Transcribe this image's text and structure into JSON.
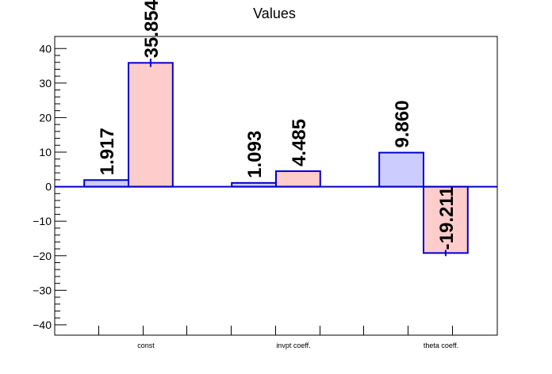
{
  "chart_data": {
    "type": "bar",
    "title": "Values",
    "categories": [
      "const",
      "invpt coeff.",
      "theta coeff."
    ],
    "series": [
      {
        "values": [
          1.917,
          1.093,
          9.86
        ],
        "labels": [
          "1.917",
          "1.093",
          "9.860"
        ],
        "errors": [
          0,
          0,
          0
        ],
        "fill": "#ccccff",
        "stroke": "#0000cc"
      },
      {
        "values": [
          35.854,
          4.485,
          -19.211
        ],
        "labels": [
          "35.854",
          "4.485",
          "-19.211"
        ],
        "errors": [
          1.2,
          0,
          0.9
        ],
        "fill": "#ffcccc",
        "stroke": "#0000cc"
      }
    ],
    "ylim": [
      -43,
      43.5
    ],
    "yticks": [
      -40,
      -30,
      -20,
      -10,
      0,
      10,
      20,
      30,
      40
    ],
    "ytick_labels": [
      "−40",
      "−30",
      "−20",
      "−10",
      "0",
      "10",
      "20",
      "30",
      "40"
    ],
    "xlabel": "",
    "ylabel": "",
    "grid": false,
    "legend": "none"
  }
}
